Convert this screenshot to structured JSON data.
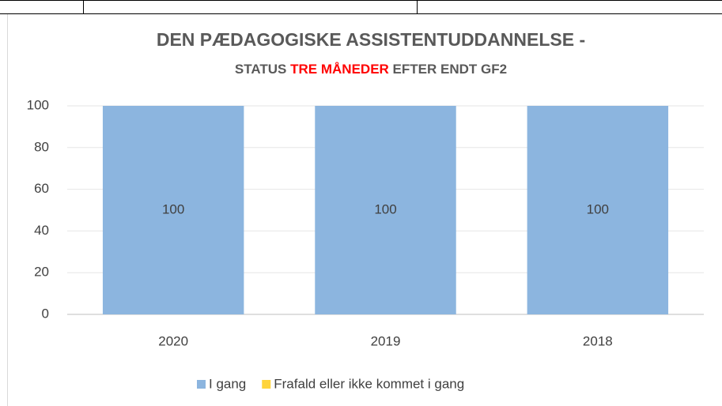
{
  "chart_data": {
    "type": "stacked_bar",
    "title": "DEN PÆDAGOGISKE ASSISTENTUDDANNELSE -",
    "subtitle": "STATUS",
    "subtitle_highlight": "TRE MÅNEDER",
    "subtitle_end": "EFTER ENDT GF2",
    "highlight_color": "#ff0000",
    "categories": [
      "2020",
      "2019",
      "2018"
    ],
    "series": [
      {
        "name": "I gang",
        "color": "#8cb5df",
        "values": [
          100,
          100,
          100
        ],
        "data_labels": true
      },
      {
        "name": "Frafald eller ikke kommet i gang",
        "color": "#ffd43b",
        "values": [
          0,
          0,
          0
        ],
        "data_labels": false
      }
    ],
    "ylim": [
      0,
      100
    ],
    "yticks": [
      0,
      20,
      40,
      60,
      80,
      100
    ],
    "grid": true,
    "legend": "bottom"
  }
}
